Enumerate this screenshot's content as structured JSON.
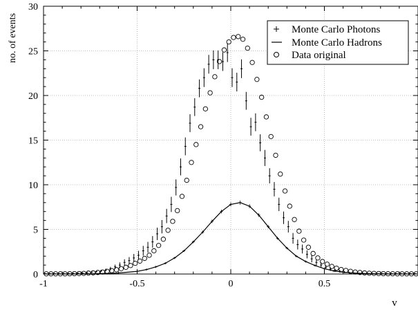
{
  "chart_data": {
    "type": "scatter",
    "title": "",
    "xlabel": "v",
    "ylabel": "no. of events",
    "xlim": [
      -1,
      1
    ],
    "ylim": [
      0,
      30
    ],
    "grid": true,
    "legend_position": "top-right",
    "x_ticks": [
      "-1",
      "-0.5",
      "0",
      "0.5"
    ],
    "y_ticks": [
      "0",
      "5",
      "10",
      "15",
      "20",
      "25",
      "30"
    ],
    "series": [
      {
        "name": "Monte Carlo Photons",
        "marker": "dot-errorbar",
        "color": "#000000",
        "x": [
          -1.0,
          -0.975,
          -0.95,
          -0.925,
          -0.9,
          -0.875,
          -0.85,
          -0.825,
          -0.8,
          -0.775,
          -0.75,
          -0.725,
          -0.7,
          -0.675,
          -0.65,
          -0.625,
          -0.6,
          -0.575,
          -0.55,
          -0.525,
          -0.5,
          -0.475,
          -0.45,
          -0.425,
          -0.4,
          -0.375,
          -0.35,
          -0.325,
          -0.3,
          -0.275,
          -0.25,
          -0.225,
          -0.2,
          -0.175,
          -0.15,
          -0.125,
          -0.1,
          -0.075,
          -0.05,
          -0.025,
          0.0,
          0.025,
          0.05,
          0.075,
          0.1,
          0.125,
          0.15,
          0.175,
          0.2,
          0.225,
          0.25,
          0.275,
          0.3,
          0.325,
          0.35,
          0.375,
          0.4,
          0.425,
          0.45,
          0.475,
          0.5,
          0.525,
          0.55,
          0.575,
          0.6,
          0.625,
          0.65,
          0.675,
          0.7,
          0.725,
          0.75,
          0.775,
          0.8,
          0.825,
          0.85,
          0.875,
          0.9,
          0.925,
          0.95,
          0.975
        ],
        "y": [
          0.05,
          0.05,
          0.05,
          0.05,
          0.05,
          0.07,
          0.08,
          0.1,
          0.12,
          0.15,
          0.2,
          0.28,
          0.35,
          0.45,
          0.6,
          0.8,
          1.0,
          1.3,
          1.5,
          1.8,
          2.1,
          2.6,
          3.0,
          3.6,
          4.5,
          5.3,
          6.5,
          7.8,
          9.7,
          12.0,
          14.3,
          16.9,
          18.7,
          20.8,
          22.0,
          23.5,
          24.0,
          24.0,
          23.8,
          24.8,
          22.0,
          21.5,
          23.0,
          19.4,
          16.5,
          17.0,
          14.7,
          13.0,
          11.0,
          9.5,
          7.8,
          6.3,
          5.3,
          4.0,
          3.3,
          2.8,
          2.2,
          1.7,
          1.3,
          1.0,
          0.75,
          0.55,
          0.4,
          0.3,
          0.2,
          0.15,
          0.1,
          0.08,
          0.07,
          0.06,
          0.05,
          0.05,
          0.05,
          0.05,
          0.05,
          0.05,
          0.05,
          0.05,
          0.05,
          0.05
        ],
        "err": [
          0.05,
          0.05,
          0.05,
          0.05,
          0.05,
          0.05,
          0.05,
          0.05,
          0.06,
          0.07,
          0.08,
          0.1,
          0.12,
          0.15,
          0.2,
          0.25,
          0.3,
          0.35,
          0.4,
          0.45,
          0.5,
          0.55,
          0.6,
          0.65,
          0.7,
          0.75,
          0.8,
          0.85,
          0.9,
          0.95,
          1.0,
          1.0,
          1.0,
          1.0,
          1.05,
          1.05,
          1.05,
          1.05,
          1.05,
          1.05,
          1.05,
          1.05,
          1.05,
          1.0,
          1.0,
          1.0,
          0.95,
          0.9,
          0.85,
          0.8,
          0.75,
          0.7,
          0.65,
          0.6,
          0.55,
          0.5,
          0.45,
          0.4,
          0.35,
          0.3,
          0.25,
          0.2,
          0.17,
          0.15,
          0.12,
          0.1,
          0.08,
          0.07,
          0.06,
          0.05,
          0.05,
          0.05,
          0.05,
          0.05,
          0.05,
          0.05,
          0.05,
          0.05,
          0.05,
          0.05
        ]
      },
      {
        "name": "Monte Carlo Hadrons",
        "marker": "line",
        "color": "#000000",
        "x": [
          -1.0,
          -0.95,
          -0.9,
          -0.85,
          -0.8,
          -0.75,
          -0.7,
          -0.65,
          -0.6,
          -0.55,
          -0.5,
          -0.45,
          -0.4,
          -0.35,
          -0.3,
          -0.25,
          -0.2,
          -0.15,
          -0.1,
          -0.05,
          0.0,
          0.05,
          0.1,
          0.15,
          0.2,
          0.25,
          0.3,
          0.35,
          0.4,
          0.45,
          0.5,
          0.55,
          0.6,
          0.65,
          0.7,
          0.75,
          0.8,
          0.85,
          0.9,
          0.95,
          1.0
        ],
        "y": [
          0.01,
          0.01,
          0.01,
          0.01,
          0.02,
          0.03,
          0.05,
          0.08,
          0.12,
          0.2,
          0.3,
          0.5,
          0.8,
          1.2,
          1.8,
          2.6,
          3.6,
          4.7,
          5.9,
          7.0,
          7.8,
          8.0,
          7.6,
          6.6,
          5.3,
          4.0,
          2.9,
          2.0,
          1.4,
          0.95,
          0.6,
          0.35,
          0.2,
          0.12,
          0.07,
          0.04,
          0.02,
          0.01,
          0.01,
          0.01,
          0.01
        ]
      },
      {
        "name": "Data original",
        "marker": "open-circle",
        "color": "#000000",
        "x": [
          -1.0,
          -0.975,
          -0.95,
          -0.925,
          -0.9,
          -0.875,
          -0.85,
          -0.825,
          -0.8,
          -0.775,
          -0.75,
          -0.725,
          -0.7,
          -0.675,
          -0.65,
          -0.625,
          -0.6,
          -0.575,
          -0.55,
          -0.525,
          -0.5,
          -0.475,
          -0.45,
          -0.425,
          -0.4,
          -0.375,
          -0.35,
          -0.325,
          -0.3,
          -0.275,
          -0.25,
          -0.225,
          -0.2,
          -0.175,
          -0.15,
          -0.125,
          -0.1,
          -0.075,
          -0.05,
          -0.025,
          0.0,
          0.025,
          0.05,
          0.075,
          0.1,
          0.125,
          0.15,
          0.175,
          0.2,
          0.225,
          0.25,
          0.275,
          0.3,
          0.325,
          0.35,
          0.375,
          0.4,
          0.425,
          0.45,
          0.475,
          0.5,
          0.525,
          0.55,
          0.575,
          0.6,
          0.625,
          0.65,
          0.675,
          0.7,
          0.725,
          0.75,
          0.775,
          0.8,
          0.825,
          0.85,
          0.875,
          0.9,
          0.925,
          0.95,
          0.975
        ],
        "y": [
          0.02,
          0.02,
          0.02,
          0.02,
          0.02,
          0.03,
          0.04,
          0.05,
          0.07,
          0.1,
          0.13,
          0.17,
          0.22,
          0.3,
          0.38,
          0.48,
          0.6,
          0.75,
          0.95,
          1.2,
          1.45,
          1.75,
          2.1,
          2.6,
          3.2,
          3.9,
          4.9,
          5.9,
          7.1,
          8.7,
          10.5,
          12.5,
          14.5,
          16.5,
          18.5,
          20.3,
          22.1,
          23.8,
          25.1,
          26.0,
          26.5,
          26.6,
          26.3,
          25.3,
          23.7,
          21.8,
          19.8,
          17.6,
          15.4,
          13.3,
          11.2,
          9.3,
          7.6,
          6.1,
          4.8,
          3.8,
          3.0,
          2.3,
          1.8,
          1.4,
          1.1,
          0.85,
          0.65,
          0.5,
          0.4,
          0.3,
          0.22,
          0.17,
          0.12,
          0.09,
          0.07,
          0.05,
          0.04,
          0.03,
          0.03,
          0.02,
          0.02,
          0.02,
          0.02,
          0.02
        ]
      }
    ]
  }
}
